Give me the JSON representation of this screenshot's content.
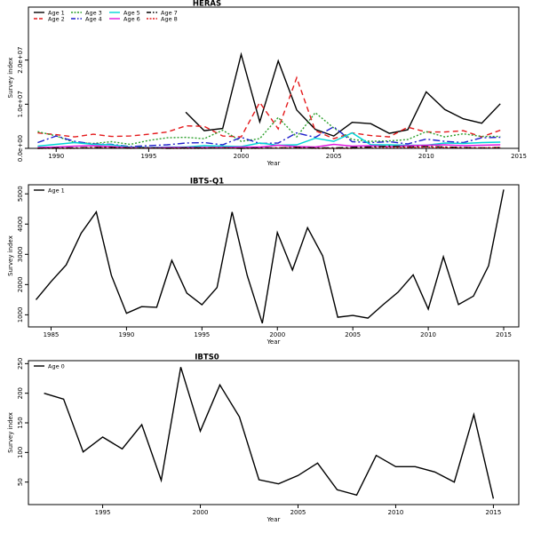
{
  "chart_data": [
    {
      "type": "line",
      "title": "HERAS",
      "xlabel": "Year",
      "ylabel": "Survey index",
      "xlim": [
        1988.5,
        2015
      ],
      "ylim": [
        0,
        32000000.0
      ],
      "xticks": [
        1990,
        1995,
        2000,
        2005,
        2010,
        2015
      ],
      "yticks": [
        0,
        10000000,
        20000000
      ],
      "ytick_labels": [
        "0.0e+00",
        "1.0e+07",
        "2.0e+07"
      ],
      "legend_position": "top-left",
      "series": [
        {
          "name": "Age 1",
          "color": "#000000",
          "dash": "solid",
          "x": [
            1997,
            1998,
            1999,
            2000,
            2001,
            2002,
            2003,
            2004,
            2005,
            2006,
            2007,
            2008,
            2009,
            2010,
            2011,
            2012,
            2013,
            2014
          ],
          "y": [
            8200000,
            4000000,
            4500000,
            21300000,
            6000000,
            19800000,
            8700000,
            4300000,
            2800000,
            5900000,
            5600000,
            3400000,
            4200000,
            12800000,
            8800000,
            6700000,
            5700000,
            10100000
          ]
        },
        {
          "name": "Age 2",
          "color": "#e41a1c",
          "dash": "6,4",
          "x": [
            1989,
            1990,
            1991,
            1992,
            1993,
            1994,
            1995,
            1996,
            1997,
            1998,
            1999,
            2000,
            2001,
            2002,
            2003,
            2004,
            2005,
            2006,
            2007,
            2008,
            2009,
            2010,
            2011,
            2012,
            2013,
            2014
          ],
          "y": [
            3500000,
            3100000,
            2600000,
            3200000,
            2700000,
            2800000,
            3200000,
            3700000,
            5100000,
            5000000,
            2800000,
            2600000,
            10400000,
            4400000,
            16000000,
            4000000,
            2200000,
            3500000,
            2900000,
            2600000,
            4800000,
            3700000,
            3700000,
            4000000,
            2600000,
            4100000
          ]
        },
        {
          "name": "Age 3",
          "color": "#2ca02c",
          "dash": "2,2",
          "x": [
            1989,
            1990,
            1991,
            1992,
            1993,
            1994,
            1995,
            1996,
            1997,
            1998,
            1999,
            2000,
            2001,
            2002,
            2003,
            2004,
            2005,
            2006,
            2007,
            2008,
            2009,
            2010,
            2011,
            2012,
            2013,
            2014
          ],
          "y": [
            3800000,
            2800000,
            1300000,
            1100000,
            1500000,
            900000,
            1800000,
            2400000,
            2500000,
            2200000,
            4100000,
            1600000,
            2200000,
            7000000,
            2600000,
            8100000,
            4600000,
            2000000,
            1600000,
            1700000,
            2000000,
            3800000,
            2600000,
            3300000,
            2700000,
            2700000
          ]
        },
        {
          "name": "Age 4",
          "color": "#1f1fcc",
          "dash": "8,3,2,3",
          "x": [
            1989,
            1990,
            1991,
            1992,
            1993,
            1994,
            1995,
            1996,
            1997,
            1998,
            1999,
            2000,
            2001,
            2002,
            2003,
            2004,
            2005,
            2006,
            2007,
            2008,
            2009,
            2010,
            2011,
            2012,
            2013,
            2014
          ],
          "y": [
            1300000,
            2800000,
            1600000,
            1000000,
            900000,
            400000,
            600000,
            800000,
            1200000,
            1300000,
            800000,
            2500000,
            1100000,
            1200000,
            3500000,
            2500000,
            4900000,
            1500000,
            1300000,
            1500000,
            1000000,
            2100000,
            1600000,
            1300000,
            2400000,
            2500000
          ]
        },
        {
          "name": "Age 5",
          "color": "#00d5d5",
          "dash": "solid",
          "x": [
            1989,
            1990,
            1991,
            1992,
            1993,
            1994,
            1995,
            1996,
            1997,
            1998,
            1999,
            2000,
            2001,
            2002,
            2003,
            2004,
            2005,
            2006,
            2007,
            2008,
            2009,
            2010,
            2011,
            2012,
            2013,
            2014
          ],
          "y": [
            500000,
            900000,
            1300000,
            900000,
            800000,
            300000,
            200000,
            300000,
            300000,
            600000,
            500000,
            400000,
            1200000,
            700000,
            800000,
            2300000,
            1600000,
            3500000,
            800000,
            800000,
            700000,
            700000,
            1200000,
            1100000,
            1300000,
            1400000
          ]
        },
        {
          "name": "Age 6",
          "color": "#e01adf",
          "dash": "solid",
          "x": [
            1989,
            1990,
            1991,
            1992,
            1993,
            1994,
            1995,
            1996,
            1997,
            1998,
            1999,
            2000,
            2001,
            2002,
            2003,
            2004,
            2005,
            2006,
            2007,
            2008,
            2009,
            2010,
            2011,
            2012,
            2013,
            2014
          ],
          "y": [
            200000,
            300000,
            500000,
            600000,
            400000,
            200000,
            100000,
            200000,
            200000,
            200000,
            200000,
            300000,
            300000,
            700000,
            400000,
            300000,
            900000,
            500000,
            600000,
            400000,
            600000,
            700000,
            800000,
            600000,
            700000,
            800000
          ]
        },
        {
          "name": "Age 7",
          "color": "#000000",
          "dash": "8,3,2,3",
          "x": [
            1989,
            1990,
            1991,
            1992,
            1993,
            1994,
            1995,
            1996,
            1997,
            1998,
            1999,
            2000,
            2001,
            2002,
            2003,
            2004,
            2005,
            2006,
            2007,
            2008,
            2009,
            2010,
            2011,
            2012,
            2013,
            2014
          ],
          "y": [
            0,
            100000,
            100000,
            200000,
            200000,
            100000,
            100000,
            0,
            100000,
            100000,
            100000,
            0,
            100000,
            100000,
            200000,
            100000,
            100000,
            200000,
            300000,
            500000,
            300000,
            400000,
            300000,
            200000,
            100000,
            200000
          ]
        },
        {
          "name": "Age 8",
          "color": "#e41a1c",
          "dash": "2,2",
          "x": [
            1989,
            1990,
            1991,
            1992,
            1993,
            1994,
            1995,
            1996,
            1997,
            1998,
            1999,
            2000,
            2001,
            2002,
            2003,
            2004,
            2005,
            2006,
            2007,
            2008,
            2009,
            2010,
            2011,
            2012,
            2013,
            2014
          ],
          "y": [
            0,
            0,
            0,
            100000,
            100000,
            0,
            100000,
            0,
            0,
            0,
            100000,
            0,
            0,
            100000,
            100000,
            0,
            0,
            0,
            100000,
            200000,
            200000,
            300000,
            200000,
            100000,
            100000,
            200000
          ]
        }
      ]
    },
    {
      "type": "line",
      "title": "IBTS-Q1",
      "xlabel": "Year",
      "ylabel": "Survey index",
      "xlim": [
        1983.5,
        2016
      ],
      "ylim": [
        600,
        5300
      ],
      "xticks": [
        1985,
        1990,
        1995,
        2000,
        2005,
        2010,
        2015
      ],
      "yticks": [
        1000,
        2000,
        3000,
        4000,
        5000
      ],
      "legend_position": "top-left",
      "series": [
        {
          "name": "Age 1",
          "color": "#000000",
          "dash": "solid",
          "x": [
            1984,
            1985,
            1986,
            1987,
            1988,
            1989,
            1990,
            1991,
            1992,
            1993,
            1994,
            1995,
            1996,
            1997,
            1998,
            1999,
            2000,
            2001,
            2002,
            2003,
            2004,
            2005,
            2006,
            2007,
            2008,
            2009,
            2010,
            2011,
            2012,
            2013,
            2014,
            2015
          ],
          "y": [
            1500,
            2100,
            2650,
            3700,
            4400,
            2300,
            1050,
            1270,
            1250,
            2800,
            1720,
            1330,
            1900,
            4400,
            2300,
            720,
            3720,
            2480,
            3880,
            2950,
            920,
            980,
            890,
            1330,
            1750,
            2320,
            1190,
            2920,
            1340,
            1620,
            2620,
            5140
          ]
        }
      ]
    },
    {
      "type": "line",
      "title": "IBTS0",
      "xlabel": "Year",
      "ylabel": "Survey index",
      "xlim": [
        1991.2,
        2016.3
      ],
      "ylim": [
        12,
        255
      ],
      "xticks": [
        1995,
        2000,
        2005,
        2010,
        2015
      ],
      "yticks": [
        50,
        100,
        150,
        200,
        250
      ],
      "legend_position": "top-left",
      "series": [
        {
          "name": "Age 0",
          "color": "#000000",
          "dash": "solid",
          "x": [
            1992,
            1993,
            1994,
            1995,
            1996,
            1997,
            1998,
            1999,
            2000,
            2001,
            2002,
            2003,
            2004,
            2005,
            2006,
            2007,
            2008,
            2009,
            2010,
            2011,
            2012,
            2013,
            2014,
            2015
          ],
          "y": [
            200,
            190,
            101,
            126,
            106,
            147,
            53,
            244,
            136,
            214,
            160,
            54,
            47,
            61,
            82,
            37,
            28,
            95,
            76,
            76,
            67,
            50,
            164,
            22
          ]
        }
      ]
    }
  ]
}
